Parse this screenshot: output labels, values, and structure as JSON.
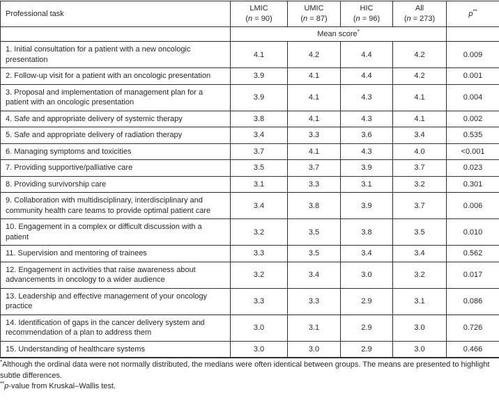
{
  "table": {
    "col1_header": "Professional task",
    "group_columns": [
      {
        "label": "LMIC",
        "n": "(n = 90)"
      },
      {
        "label": "UMIC",
        "n": "(n = 87)"
      },
      {
        "label": "HIC",
        "n": "(n = 96)"
      },
      {
        "label": "All",
        "n": "(n = 273)"
      }
    ],
    "p_header": "p",
    "p_header_sup": "**",
    "span_label": "Mean score",
    "span_label_sup": "*",
    "rows": [
      {
        "task": "1. Initial consultation for a patient with a new oncologic presentation",
        "values": [
          "4.1",
          "4.2",
          "4.4",
          "4.2",
          "0.009"
        ]
      },
      {
        "task": "2. Follow-up visit for a patient with an oncologic presentation",
        "values": [
          "3.9",
          "4.1",
          "4.4",
          "4.2",
          "0.001"
        ]
      },
      {
        "task": "3. Proposal and implementation of management plan for a patient with an oncologic presentation",
        "values": [
          "3.9",
          "4.1",
          "4.3",
          "4.1",
          "0.004"
        ]
      },
      {
        "task": "4. Safe and appropriate delivery of systemic therapy",
        "values": [
          "3.8",
          "4.1",
          "4.3",
          "4.1",
          "0.002"
        ]
      },
      {
        "task": "5. Safe and appropriate delivery of radiation therapy",
        "values": [
          "3.4",
          "3.3",
          "3.6",
          "3.4",
          "0.535"
        ]
      },
      {
        "task": "6. Managing symptoms and toxicities",
        "values": [
          "3.7",
          "4.1",
          "4.3",
          "4.0",
          "<0.001"
        ]
      },
      {
        "task": "7. Providing supportive/palliative care",
        "values": [
          "3.5",
          "3.7",
          "3.9",
          "3.7",
          "0.023"
        ]
      },
      {
        "task": "8. Providing survivorship care",
        "values": [
          "3.1",
          "3.3",
          "3.1",
          "3.2",
          "0.301"
        ]
      },
      {
        "task": "9. Collaboration with multidisciplinary, interdisciplinary and community health care teams to provide optimal patient care",
        "values": [
          "3.4",
          "3.8",
          "3.9",
          "3.7",
          "0.006"
        ]
      },
      {
        "task": "10. Engagement in a complex or difficult discussion with a patient",
        "values": [
          "3.2",
          "3.5",
          "3.8",
          "3.5",
          "0.010"
        ]
      },
      {
        "task": "11. Supervision and mentoring of trainees",
        "values": [
          "3.3",
          "3.5",
          "3.4",
          "3.4",
          "0.562"
        ]
      },
      {
        "task": "12. Engagement in activities that raise awareness about advancements in oncology to a wider audience",
        "values": [
          "3.2",
          "3.4",
          "3.0",
          "3.2",
          "0.017"
        ]
      },
      {
        "task": "13. Leadership and effective management of your oncology practice",
        "values": [
          "3.3",
          "3.3",
          "2.9",
          "3.1",
          "0.086"
        ]
      },
      {
        "task": "14. Identification of gaps in the cancer delivery system and recommendation of a plan to address them",
        "values": [
          "3.0",
          "3.1",
          "2.9",
          "3.0",
          "0.726"
        ]
      },
      {
        "task": "15. Understanding of healthcare systems",
        "values": [
          "3.0",
          "3.0",
          "2.9",
          "3.0",
          "0.466"
        ]
      }
    ]
  },
  "footnotes": [
    {
      "sup": "*",
      "italic": "",
      "text": "Although the ordinal data were not normally distributed, the medians were often identical between groups. The means are presented to highlight subtle differences."
    },
    {
      "sup": "**",
      "italic": "p",
      "text": "-value from Kruskal–Wallis test."
    }
  ]
}
